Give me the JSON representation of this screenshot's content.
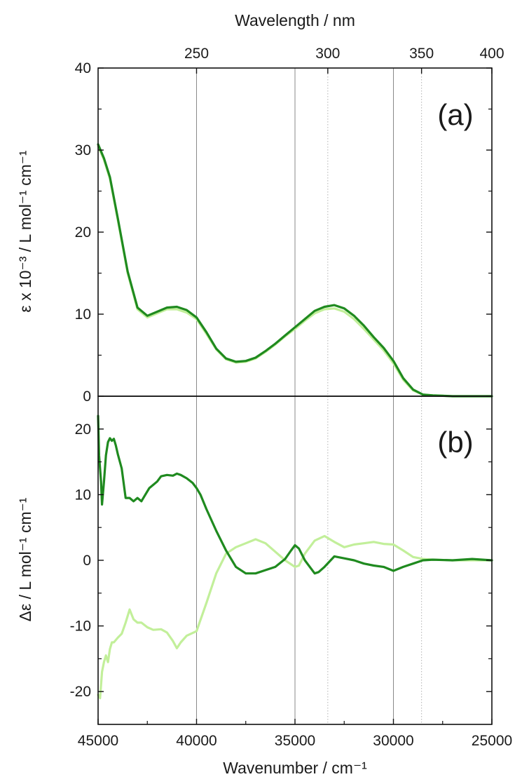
{
  "chart_data": [
    {
      "type": "line",
      "panel": "(a)",
      "xlabel": "Wavenumber / cm⁻¹",
      "top_xlabel": "Wavelength / nm",
      "ylabel": "ε x 10⁻³ / L mol⁻¹ cm⁻¹",
      "x_reversed": true,
      "xlim": [
        45000,
        25000
      ],
      "ylim": [
        0,
        40
      ],
      "yticks": [
        0,
        10,
        20,
        30,
        40
      ],
      "top_ticks_nm": [
        250,
        300,
        350,
        400
      ],
      "reference_lines": {
        "solid": [
          40000,
          35000,
          30000
        ],
        "dotted": [
          33333,
          28571
        ]
      },
      "series": [
        {
          "color": "#c2ef9a",
          "x": [
            45000,
            44700,
            44400,
            44000,
            43500,
            43000,
            42500,
            42000,
            41500,
            41000,
            40500,
            40000,
            39500,
            39000,
            38500,
            38000,
            37500,
            37000,
            36500,
            36000,
            35500,
            35000,
            34500,
            34000,
            33500,
            33000,
            32500,
            32000,
            31500,
            31000,
            30500,
            30000,
            29500,
            29000,
            28500,
            28000,
            27500,
            27000,
            26000,
            25000
          ],
          "y": [
            30.5,
            28.8,
            26.5,
            21.5,
            15.0,
            10.6,
            9.6,
            10.1,
            10.6,
            10.6,
            10.2,
            9.4,
            7.6,
            5.7,
            4.5,
            4.1,
            4.2,
            4.6,
            5.4,
            6.3,
            7.3,
            8.2,
            9.2,
            10.1,
            10.6,
            10.7,
            10.3,
            9.4,
            8.2,
            6.9,
            5.6,
            4.0,
            2.0,
            0.7,
            0.2,
            0.1,
            0.05,
            0,
            0,
            0
          ]
        },
        {
          "color": "#1f8a1f",
          "x": [
            45000,
            44700,
            44400,
            44000,
            43500,
            43000,
            42500,
            42000,
            41500,
            41000,
            40500,
            40000,
            39500,
            39000,
            38500,
            38000,
            37500,
            37000,
            36500,
            36000,
            35500,
            35000,
            34500,
            34000,
            33500,
            33000,
            32500,
            32000,
            31500,
            31000,
            30500,
            30000,
            29500,
            29000,
            28500,
            28000,
            27500,
            27000,
            26000,
            25000
          ],
          "y": [
            30.7,
            29.0,
            26.7,
            21.7,
            15.2,
            10.8,
            9.8,
            10.3,
            10.8,
            10.9,
            10.5,
            9.6,
            7.8,
            5.8,
            4.6,
            4.2,
            4.3,
            4.7,
            5.5,
            6.4,
            7.4,
            8.4,
            9.4,
            10.4,
            10.9,
            11.1,
            10.7,
            9.8,
            8.6,
            7.2,
            5.9,
            4.3,
            2.2,
            0.8,
            0.2,
            0.1,
            0.05,
            0,
            0,
            0
          ]
        }
      ]
    },
    {
      "type": "line",
      "panel": "(b)",
      "xlabel": "Wavenumber / cm⁻¹",
      "ylabel": "Δε / L mol⁻¹ cm⁻¹",
      "x_reversed": true,
      "xlim": [
        45000,
        25000
      ],
      "ylim": [
        -25,
        25
      ],
      "yticks": [
        -20,
        -10,
        0,
        10,
        20
      ],
      "xticks": [
        45000,
        40000,
        35000,
        30000,
        25000
      ],
      "series": [
        {
          "color": "#c2ef9a",
          "x": [
            45000,
            44900,
            44800,
            44700,
            44600,
            44500,
            44400,
            44300,
            44200,
            44000,
            43800,
            43600,
            43400,
            43200,
            43000,
            42800,
            42500,
            42200,
            41800,
            41500,
            41200,
            41000,
            40800,
            40500,
            40000,
            39500,
            39000,
            38500,
            38000,
            37500,
            37000,
            36500,
            36000,
            35500,
            35000,
            34800,
            34500,
            34000,
            33500,
            33000,
            32500,
            32000,
            31500,
            31000,
            30500,
            30000,
            29500,
            29000,
            28500,
            28000,
            27000,
            26000,
            25000
          ],
          "y": [
            -20.5,
            -21.0,
            -17.0,
            -15.5,
            -14.5,
            -15.5,
            -13.5,
            -12.5,
            -12.5,
            -11.8,
            -11.2,
            -9.5,
            -7.5,
            -9.0,
            -9.5,
            -9.5,
            -10.2,
            -10.6,
            -10.5,
            -11.0,
            -12.3,
            -13.4,
            -12.5,
            -11.5,
            -10.8,
            -6.5,
            -2.0,
            1.0,
            2.0,
            2.6,
            3.2,
            2.6,
            1.3,
            0.0,
            -1.0,
            -0.8,
            1.0,
            3.0,
            3.7,
            2.8,
            2.0,
            2.4,
            2.6,
            2.8,
            2.5,
            2.4,
            1.5,
            0.5,
            0.2,
            0.1,
            0.0,
            0.0,
            0.0
          ]
        },
        {
          "color": "#1f8a1f",
          "x": [
            45000,
            44950,
            44900,
            44850,
            44800,
            44700,
            44600,
            44500,
            44400,
            44300,
            44200,
            44100,
            44000,
            43800,
            43600,
            43400,
            43200,
            43000,
            42800,
            42600,
            42400,
            42200,
            42000,
            41800,
            41500,
            41200,
            41000,
            40800,
            40500,
            40200,
            40000,
            39800,
            39500,
            39000,
            38500,
            38000,
            37500,
            37000,
            36500,
            36000,
            35500,
            35200,
            35000,
            34800,
            34500,
            34000,
            33800,
            33500,
            33000,
            32500,
            32000,
            31500,
            31000,
            30500,
            30000,
            29500,
            29000,
            28500,
            28000,
            27000,
            26000,
            25000
          ],
          "y": [
            22.0,
            16.0,
            14.0,
            12.0,
            8.5,
            12.0,
            16.0,
            18.0,
            18.6,
            18.2,
            18.5,
            17.5,
            16.2,
            14.0,
            9.5,
            9.5,
            9.0,
            9.5,
            9.0,
            10.0,
            11.0,
            11.5,
            12.0,
            12.8,
            13.0,
            12.9,
            13.2,
            13.0,
            12.5,
            11.8,
            11.0,
            10.0,
            7.8,
            4.5,
            1.5,
            -1.0,
            -2.0,
            -2.0,
            -1.5,
            -1.0,
            0.2,
            1.5,
            2.3,
            1.8,
            0.0,
            -2.0,
            -1.8,
            -1.0,
            0.6,
            0.3,
            0.0,
            -0.5,
            -0.8,
            -1.0,
            -1.6,
            -1.0,
            -0.5,
            0.0,
            0.1,
            0.0,
            0.2,
            0.0
          ]
        }
      ]
    }
  ]
}
